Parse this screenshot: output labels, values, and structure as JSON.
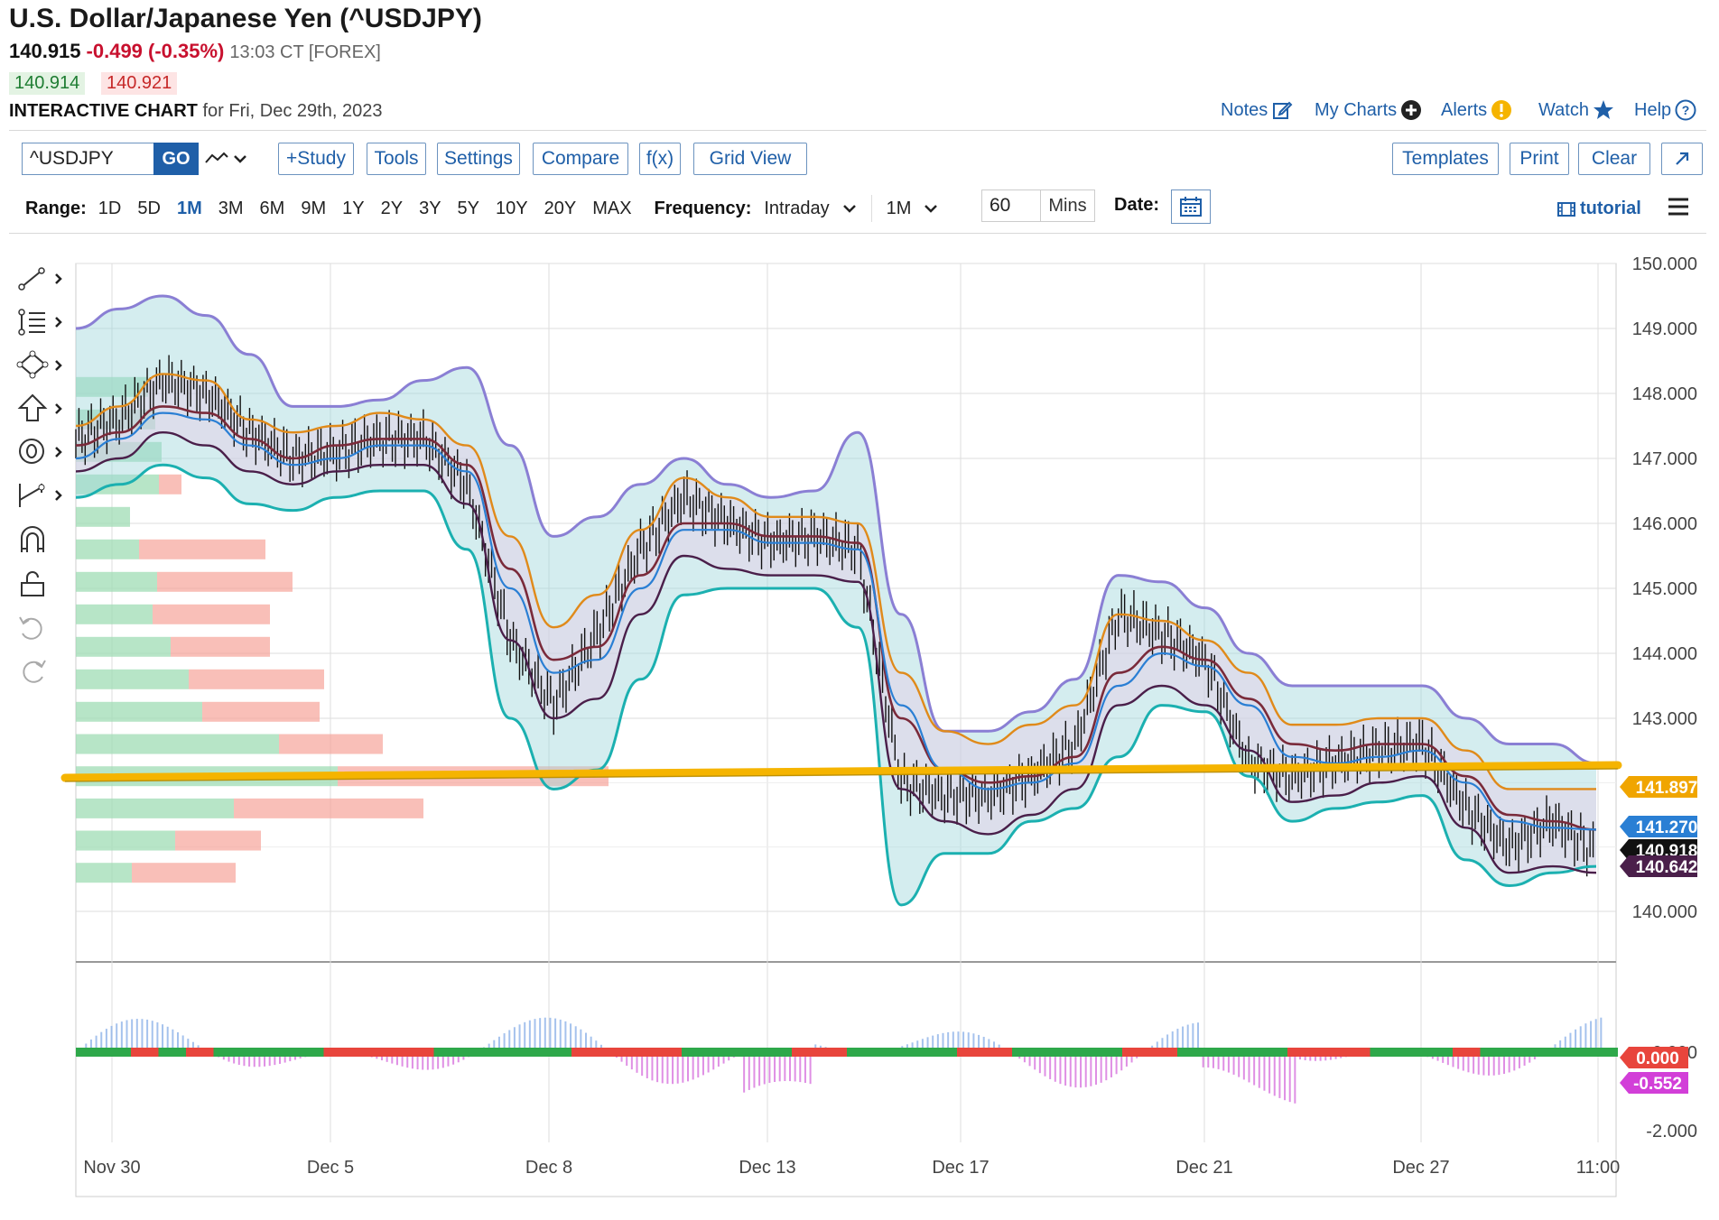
{
  "header": {
    "title": "U.S. Dollar/Japanese Yen (^USDJPY)",
    "last": "140.915",
    "change": "-0.499 (-0.35%)",
    "time": "13:03 CT [FOREX]",
    "bid": "140.914",
    "ask": "140.921",
    "chart_label": "INTERACTIVE CHART",
    "chart_for": "for Fri, Dec 29th, 2023"
  },
  "toplinks": {
    "notes": "Notes",
    "mycharts": "My Charts",
    "alerts": "Alerts",
    "watch": "Watch",
    "help": "Help"
  },
  "toolbar": {
    "symbol": "^USDJPY",
    "go": "GO",
    "study": "+Study",
    "tools": "Tools",
    "settings": "Settings",
    "compare": "Compare",
    "fx": "f(x)",
    "gridview": "Grid View",
    "templates": "Templates",
    "print": "Print",
    "clear": "Clear"
  },
  "range": {
    "label": "Range:",
    "options": [
      "1D",
      "5D",
      "1M",
      "3M",
      "6M",
      "9M",
      "1Y",
      "2Y",
      "3Y",
      "5Y",
      "10Y",
      "20Y",
      "MAX"
    ],
    "active": "1M"
  },
  "frequency": {
    "label": "Frequency:",
    "value": "Intraday",
    "period": "1M",
    "mins_value": "60",
    "mins_label": "Mins",
    "date_label": "Date:"
  },
  "tutorial": "tutorial",
  "colors": {
    "accent": "#1f5fa8",
    "down": "#c8102e",
    "up": "#1e7d32",
    "orange": "#f0a500",
    "purple": "#8a7fd4",
    "teal": "#1bb0b0",
    "maroon": "#7a2a3a"
  },
  "chart_data": {
    "type": "line",
    "title": "U.S. Dollar/Japanese Yen (^USDJPY)",
    "x_ticks": [
      "Nov 30",
      "Dec 5",
      "Dec 8",
      "Dec 13",
      "Dec 17",
      "Dec 21",
      "Dec 27",
      "11:00"
    ],
    "y_ticks": [
      "150.000",
      "149.000",
      "148.000",
      "147.000",
      "146.000",
      "145.000",
      "144.000",
      "143.000",
      "140.000"
    ],
    "ylim": [
      140,
      150
    ],
    "series": [
      {
        "values": [
          147.3,
          147.6,
          148.2,
          148.0,
          147.4,
          147.0,
          147.1,
          147.3,
          147.3,
          146.6,
          144.2,
          143.2,
          144.3,
          145.6,
          146.4,
          146.0,
          145.7,
          145.8,
          145.6,
          142.0,
          141.8,
          141.8,
          142.1,
          142.6,
          144.6,
          144.3,
          143.9,
          142.3,
          142.1,
          142.3,
          142.5,
          142.6,
          141.6,
          141.0,
          141.4,
          140.9
        ]
      },
      {
        "values": [
          147.0,
          147.3,
          147.7,
          147.6,
          147.2,
          146.9,
          147.0,
          147.2,
          147.2,
          146.8,
          145.0,
          143.7,
          143.9,
          145.0,
          145.9,
          145.9,
          145.7,
          145.7,
          145.6,
          143.2,
          142.2,
          141.9,
          142.0,
          142.3,
          143.5,
          144.0,
          143.8,
          143.2,
          142.4,
          142.3,
          142.4,
          142.5,
          142.0,
          141.4,
          141.3,
          141.27
        ]
      },
      {
        "values": [
          147.5,
          147.8,
          148.3,
          148.2,
          147.6,
          147.4,
          147.5,
          147.7,
          147.6,
          147.2,
          145.8,
          144.4,
          144.9,
          145.9,
          146.7,
          146.4,
          146.1,
          146.1,
          146.0,
          143.7,
          142.8,
          142.6,
          142.9,
          143.2,
          144.6,
          144.5,
          144.2,
          143.7,
          142.9,
          142.9,
          143.0,
          143.0,
          142.5,
          141.9,
          141.9,
          141.9
        ]
      },
      {
        "values": [
          146.8,
          147.0,
          147.4,
          147.2,
          146.8,
          146.6,
          146.8,
          146.9,
          146.9,
          146.3,
          144.2,
          143.0,
          143.3,
          144.6,
          145.5,
          145.3,
          145.2,
          145.2,
          145.1,
          141.9,
          141.4,
          141.2,
          141.5,
          141.9,
          143.2,
          143.5,
          143.2,
          142.5,
          141.7,
          141.8,
          142.0,
          142.1,
          141.3,
          140.6,
          140.7,
          140.6
        ]
      },
      {
        "values": [
          147.2,
          147.4,
          147.8,
          147.7,
          147.3,
          147.0,
          147.2,
          147.3,
          147.3,
          146.9,
          145.3,
          143.9,
          144.1,
          145.2,
          146.0,
          146.0,
          145.8,
          145.8,
          145.7,
          143.0,
          142.2,
          142.0,
          142.1,
          142.4,
          143.7,
          144.1,
          143.9,
          143.3,
          142.6,
          142.5,
          142.6,
          142.6,
          142.1,
          141.5,
          141.4,
          141.27
        ]
      },
      {
        "values": [
          149.0,
          149.3,
          149.5,
          149.2,
          148.6,
          147.8,
          147.8,
          147.9,
          148.2,
          148.4,
          147.2,
          145.8,
          146.1,
          146.6,
          147.0,
          146.6,
          146.4,
          146.5,
          147.4,
          144.6,
          142.8,
          142.8,
          143.1,
          143.6,
          145.2,
          145.1,
          144.7,
          144.0,
          143.5,
          143.5,
          143.5,
          143.5,
          143.0,
          142.6,
          142.6,
          142.3
        ]
      },
      {
        "values": [
          146.4,
          146.6,
          146.9,
          146.7,
          146.3,
          146.2,
          146.4,
          146.5,
          146.5,
          145.6,
          143.0,
          141.9,
          142.2,
          143.6,
          144.9,
          145.0,
          145.0,
          145.0,
          144.4,
          140.1,
          140.9,
          140.9,
          141.4,
          141.6,
          142.4,
          143.2,
          143.1,
          142.1,
          141.4,
          141.6,
          141.7,
          141.8,
          140.8,
          140.4,
          140.6,
          140.7
        ]
      }
    ],
    "volume_profile": {
      "levels": [
        148.1,
        147.6,
        147.1,
        146.6,
        146.1,
        145.6,
        145.1,
        144.6,
        144.1,
        143.6,
        143.1,
        142.6,
        142.1,
        141.6,
        141.1,
        140.6
      ],
      "up": [
        80,
        88,
        95,
        92,
        60,
        70,
        90,
        85,
        105,
        125,
        140,
        225,
        290,
        175,
        110,
        62
      ],
      "down": [
        0,
        0,
        0,
        25,
        0,
        140,
        150,
        130,
        110,
        150,
        130,
        115,
        300,
        210,
        95,
        115
      ]
    },
    "price_labels": [
      "141.897",
      "141.270",
      "140.918",
      "140.642"
    ],
    "oscillator": {
      "y_ticks": [
        "0.000",
        "-2.000"
      ],
      "labels": [
        "0.000",
        "-0.552"
      ]
    }
  }
}
